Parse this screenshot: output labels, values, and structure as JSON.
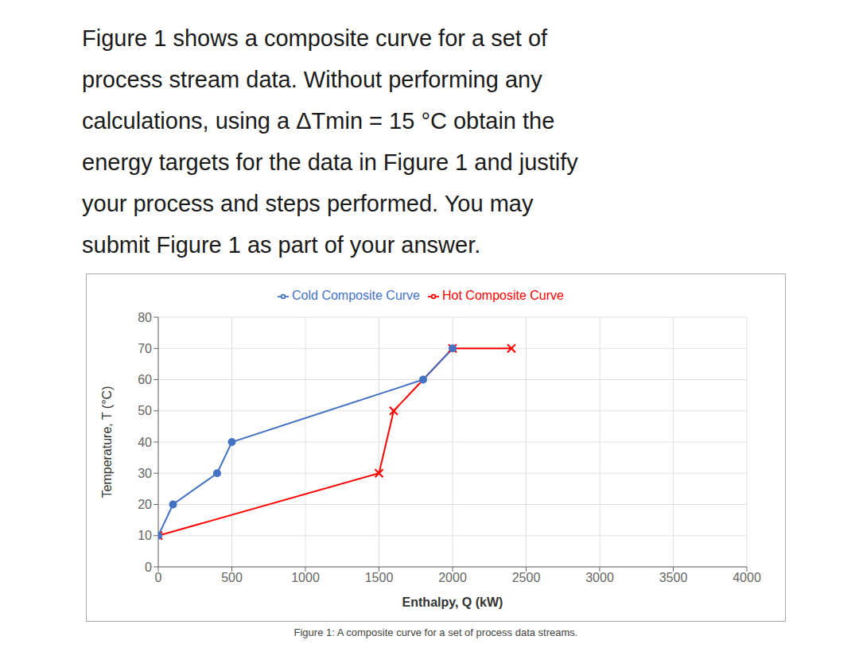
{
  "chart_data": {
    "type": "line",
    "title": [
      "Figure 1 shows a composite curve for a set of",
      "process stream data. Without performing any",
      "calculations, using a ΔTmin = 15 °C obtain the",
      "energy targets for the data in Figure 1 and justify",
      "your process and steps performed. You may",
      "submit Figure 1 as part of your answer."
    ],
    "caption": "Figure 1: A composite curve for a set of process data streams.",
    "x_label": "Enthalpy, Q (kW)",
    "y_label": "Temperature, T (°C)",
    "series": [
      {
        "name": "Hot Composite Curve",
        "color": "#FF0000",
        "marker": "x",
        "x": [
          0,
          1500,
          1600,
          2000,
          2400
        ],
        "values": [
          10,
          30,
          50,
          70,
          70
        ]
      },
      {
        "name": "Cold Composite Curve",
        "color": "#4472C4",
        "marker": "o",
        "x": [
          0,
          100,
          400,
          500,
          1800,
          2000
        ],
        "values": [
          10,
          20,
          30,
          40,
          60,
          70
        ]
      }
    ],
    "xlim": [
      0,
      4000
    ],
    "ylim": [
      0,
      80
    ],
    "xticks": [
      0,
      500,
      1000,
      1500,
      2000,
      2500,
      3000,
      3500,
      4000
    ],
    "yticks": [
      0,
      10,
      20,
      30,
      40,
      50,
      60,
      70,
      80
    ],
    "grid": true,
    "legend": "top"
  }
}
